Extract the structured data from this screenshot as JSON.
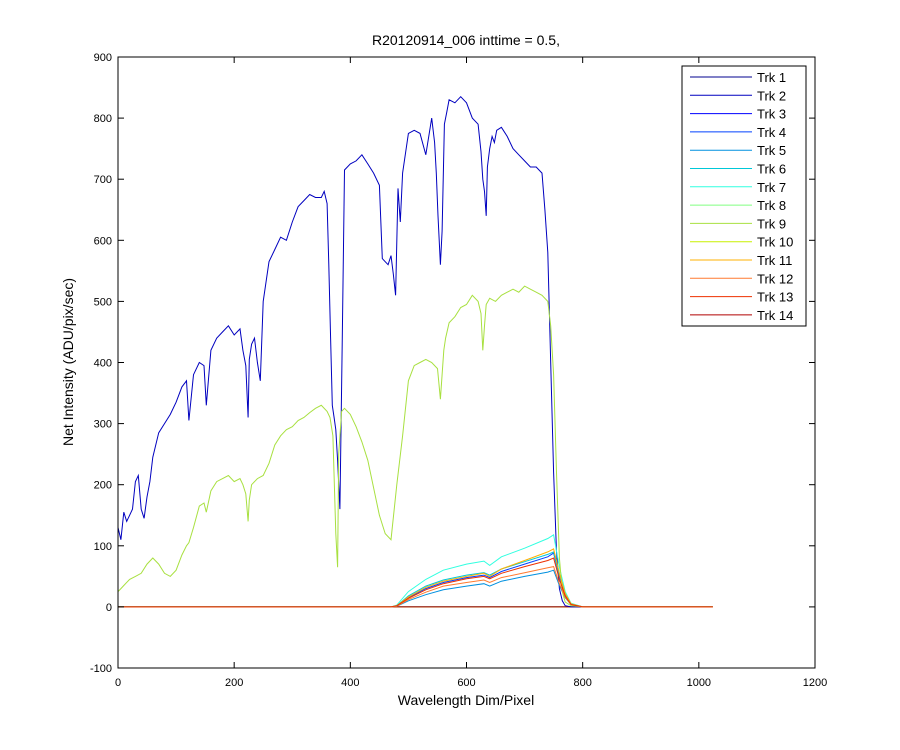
{
  "chart_data": {
    "type": "line",
    "title": "R20120914_006 inttime = 0.5,",
    "xlabel": "Wavelength Dim/Pixel",
    "ylabel": "Net Intensity (ADU/pix/sec)",
    "xlim": [
      0,
      1200
    ],
    "ylim": [
      -100,
      900
    ],
    "xticks": [
      0,
      200,
      400,
      600,
      800,
      1000,
      1200
    ],
    "yticks": [
      -100,
      0,
      100,
      200,
      300,
      400,
      500,
      600,
      700,
      800,
      900
    ],
    "grid": false,
    "legend_position": "top-right",
    "series": [
      {
        "name": "Trk 1",
        "color": "#00008F",
        "x": [
          0,
          1024
        ],
        "y": [
          0,
          0
        ]
      },
      {
        "name": "Trk 2",
        "color": "#0000BF",
        "x": [
          0,
          5,
          10,
          15,
          20,
          25,
          30,
          35,
          40,
          45,
          50,
          55,
          60,
          70,
          80,
          90,
          100,
          110,
          118,
          122,
          130,
          140,
          148,
          152,
          160,
          170,
          180,
          190,
          200,
          210,
          215,
          220,
          224,
          226,
          230,
          235,
          240,
          245,
          250,
          260,
          270,
          280,
          290,
          300,
          310,
          320,
          330,
          340,
          350,
          355,
          360,
          363,
          366,
          369,
          372,
          375,
          378,
          382,
          386,
          390,
          400,
          410,
          420,
          430,
          440,
          450,
          455,
          460,
          465,
          470,
          474,
          478,
          482,
          486,
          490,
          500,
          510,
          520,
          530,
          540,
          545,
          548,
          551,
          555,
          558,
          562,
          566,
          570,
          580,
          590,
          600,
          610,
          620,
          625,
          628,
          631,
          634,
          636,
          640,
          644,
          648,
          652,
          660,
          670,
          680,
          690,
          700,
          710,
          720,
          730,
          735,
          740,
          745,
          750,
          755,
          760,
          765,
          770,
          780,
          800,
          850,
          900,
          950,
          1000,
          1024
        ],
        "y": [
          130,
          110,
          155,
          140,
          150,
          160,
          205,
          215,
          160,
          145,
          180,
          205,
          245,
          285,
          300,
          315,
          335,
          360,
          370,
          305,
          380,
          400,
          395,
          330,
          420,
          440,
          450,
          460,
          445,
          455,
          420,
          395,
          310,
          405,
          430,
          440,
          400,
          370,
          500,
          565,
          585,
          605,
          600,
          630,
          655,
          665,
          675,
          670,
          670,
          680,
          660,
          560,
          440,
          330,
          310,
          290,
          240,
          160,
          430,
          715,
          725,
          730,
          740,
          725,
          710,
          690,
          570,
          565,
          560,
          575,
          545,
          510,
          685,
          630,
          710,
          775,
          780,
          775,
          740,
          800,
          760,
          710,
          640,
          560,
          615,
          790,
          810,
          830,
          825,
          835,
          825,
          800,
          790,
          745,
          700,
          680,
          640,
          720,
          750,
          770,
          760,
          780,
          785,
          770,
          750,
          740,
          730,
          720,
          720,
          710,
          650,
          580,
          400,
          220,
          90,
          30,
          10,
          2,
          0,
          0,
          0,
          0,
          0,
          0,
          0
        ]
      },
      {
        "name": "Trk 3",
        "color": "#0000FF",
        "x": [
          0,
          1024
        ],
        "y": [
          0,
          0
        ]
      },
      {
        "name": "Trk 4",
        "color": "#0040FF",
        "x": [
          0,
          470,
          480,
          500,
          530,
          560,
          600,
          630,
          640,
          660,
          700,
          740,
          750,
          760,
          770,
          780,
          800,
          1024
        ],
        "y": [
          0,
          0,
          2,
          15,
          30,
          40,
          48,
          52,
          48,
          58,
          70,
          82,
          88,
          50,
          20,
          5,
          0,
          0
        ]
      },
      {
        "name": "Trk 5",
        "color": "#0090DF",
        "x": [
          0,
          470,
          480,
          500,
          530,
          560,
          600,
          630,
          640,
          660,
          700,
          740,
          750,
          760,
          770,
          780,
          800,
          1024
        ],
        "y": [
          0,
          0,
          1,
          10,
          20,
          28,
          34,
          38,
          34,
          42,
          50,
          57,
          60,
          35,
          15,
          4,
          0,
          0
        ]
      },
      {
        "name": "Trk 6",
        "color": "#00C8D8",
        "x": [
          0,
          470,
          480,
          500,
          530,
          560,
          600,
          630,
          640,
          660,
          700,
          740,
          750,
          760,
          770,
          780,
          800,
          1024
        ],
        "y": [
          0,
          0,
          2,
          18,
          34,
          44,
          52,
          56,
          52,
          62,
          74,
          86,
          90,
          52,
          22,
          5,
          0,
          0
        ]
      },
      {
        "name": "Trk 7",
        "color": "#30FFE0",
        "x": [
          0,
          470,
          480,
          500,
          530,
          560,
          600,
          630,
          640,
          660,
          700,
          740,
          750,
          760,
          770,
          780,
          800,
          1024
        ],
        "y": [
          0,
          0,
          3,
          25,
          45,
          60,
          70,
          75,
          68,
          82,
          96,
          112,
          118,
          65,
          25,
          6,
          0,
          0
        ]
      },
      {
        "name": "Trk 8",
        "color": "#80FF80",
        "x": [
          0,
          1024
        ],
        "y": [
          0,
          0
        ]
      },
      {
        "name": "Trk 9",
        "color": "#A8E040",
        "x": [
          0,
          5,
          10,
          20,
          30,
          40,
          50,
          60,
          70,
          80,
          90,
          100,
          110,
          118,
          122,
          130,
          140,
          148,
          152,
          160,
          170,
          180,
          190,
          200,
          210,
          215,
          220,
          224,
          226,
          230,
          240,
          250,
          260,
          270,
          280,
          290,
          300,
          310,
          320,
          330,
          340,
          350,
          360,
          365,
          370,
          375,
          378,
          380,
          385,
          390,
          400,
          410,
          420,
          430,
          440,
          450,
          460,
          470,
          480,
          490,
          500,
          510,
          520,
          530,
          540,
          550,
          555,
          558,
          561,
          564,
          570,
          580,
          590,
          600,
          610,
          620,
          625,
          628,
          631,
          634,
          640,
          650,
          660,
          670,
          680,
          690,
          700,
          710,
          720,
          730,
          740,
          745,
          750,
          755,
          760,
          765,
          770,
          780,
          800,
          1024
        ],
        "y": [
          25,
          30,
          35,
          45,
          50,
          55,
          70,
          80,
          70,
          55,
          50,
          60,
          85,
          100,
          105,
          130,
          165,
          170,
          155,
          190,
          205,
          210,
          215,
          205,
          210,
          200,
          185,
          140,
          175,
          200,
          210,
          215,
          235,
          265,
          280,
          290,
          295,
          305,
          310,
          318,
          325,
          330,
          320,
          310,
          280,
          120,
          65,
          250,
          320,
          325,
          315,
          295,
          270,
          240,
          195,
          150,
          120,
          110,
          200,
          280,
          370,
          395,
          400,
          405,
          400,
          390,
          340,
          380,
          420,
          440,
          465,
          475,
          490,
          495,
          510,
          500,
          480,
          420,
          460,
          495,
          505,
          500,
          510,
          515,
          520,
          515,
          525,
          520,
          515,
          510,
          500,
          460,
          380,
          220,
          80,
          25,
          8,
          2,
          0,
          0
        ]
      },
      {
        "name": "Trk 10",
        "color": "#C8F000",
        "x": [
          0,
          1024
        ],
        "y": [
          0,
          0
        ]
      },
      {
        "name": "Trk 11",
        "color": "#FFB000",
        "x": [
          0,
          470,
          480,
          500,
          530,
          560,
          600,
          630,
          640,
          660,
          700,
          740,
          750,
          760,
          770,
          780,
          800,
          1024
        ],
        "y": [
          0,
          0,
          2,
          16,
          32,
          42,
          50,
          55,
          50,
          62,
          76,
          90,
          95,
          55,
          22,
          5,
          0,
          0
        ]
      },
      {
        "name": "Trk 12",
        "color": "#FF7A30",
        "x": [
          0,
          470,
          480,
          500,
          530,
          560,
          600,
          630,
          640,
          660,
          700,
          740,
          750,
          760,
          770,
          780,
          800,
          1024
        ],
        "y": [
          0,
          0,
          1,
          12,
          24,
          34,
          40,
          44,
          40,
          48,
          56,
          64,
          66,
          38,
          16,
          4,
          0,
          0
        ]
      },
      {
        "name": "Trk 13",
        "color": "#EE3000",
        "x": [
          0,
          470,
          480,
          500,
          530,
          560,
          600,
          630,
          640,
          660,
          700,
          740,
          750,
          760,
          770,
          780,
          800,
          1024
        ],
        "y": [
          0,
          0,
          2,
          14,
          28,
          38,
          46,
          50,
          46,
          55,
          66,
          76,
          80,
          45,
          18,
          4,
          0,
          0
        ]
      },
      {
        "name": "Trk 14",
        "color": "#B00000",
        "x": [
          0,
          1024
        ],
        "y": [
          0,
          0
        ]
      }
    ]
  }
}
